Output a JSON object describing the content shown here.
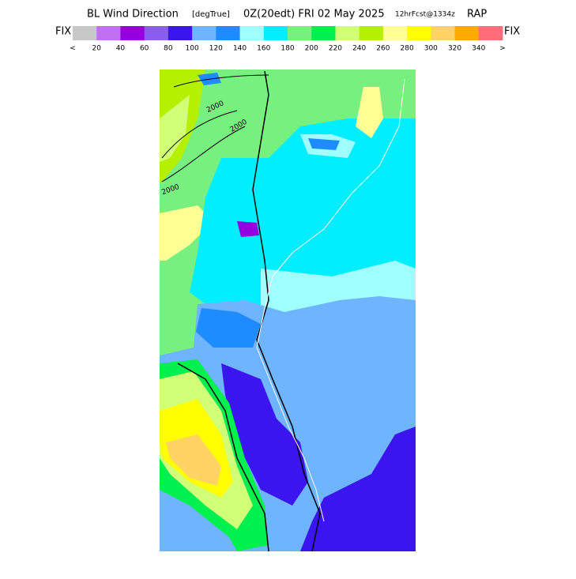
{
  "header": {
    "title": "BL Wind Direction",
    "units": "[degTrue]",
    "valid_time": "0Z(20edt) FRI 02 May 2025",
    "forecast": "12hrFcst@1334z",
    "model": "RAP"
  },
  "legend": {
    "left_label": "FIX",
    "right_label": "FIX",
    "colors": [
      "#c8c8c8",
      "#c070f0",
      "#9600e0",
      "#8a5cf0",
      "#3c14f0",
      "#6eb4ff",
      "#1e8cff",
      "#a0ffff",
      "#00eeff",
      "#78f080",
      "#00f050",
      "#d2ff78",
      "#b4f000",
      "#ffff96",
      "#ffff00",
      "#ffd264",
      "#ffaa00",
      "#ff6e78"
    ],
    "tick_labels": [
      "<",
      "20",
      "40",
      "60",
      "80",
      "100",
      "120",
      "140",
      "160",
      "180",
      "200",
      "220",
      "240",
      "260",
      "280",
      "300",
      "320",
      "340",
      ">"
    ]
  },
  "map": {
    "contour_labels": [
      "2000",
      "2000",
      "2000"
    ]
  }
}
